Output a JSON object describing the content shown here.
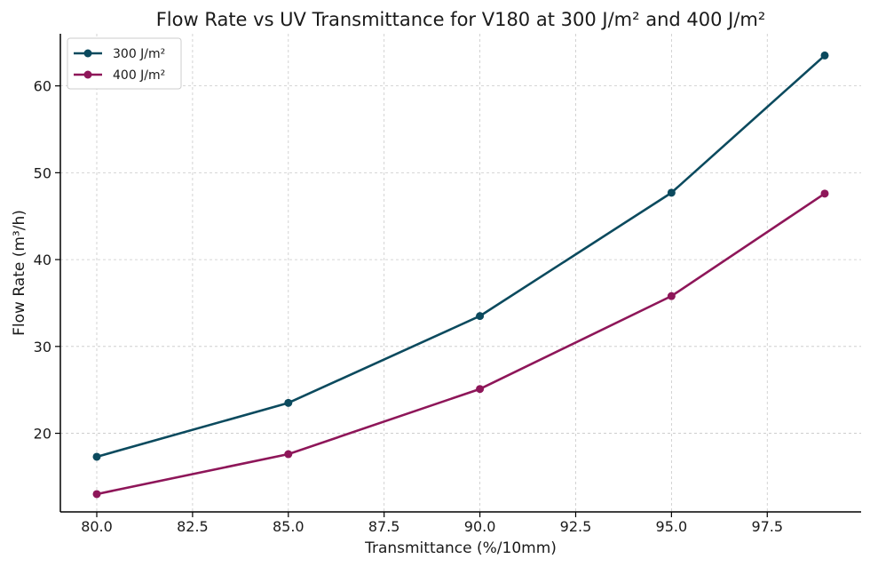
{
  "chart_data": {
    "type": "line",
    "title": "Flow Rate vs UV Transmittance for V180 at 300 J/m² and 400 J/m²",
    "xlabel": "Transmittance (%/10mm)",
    "ylabel": "Flow Rate (m³/h)",
    "x": [
      80,
      85,
      90,
      95,
      99
    ],
    "xlim": [
      79.05,
      99.95
    ],
    "ylim": [
      10.95,
      66.0
    ],
    "xticks": [
      80.0,
      82.5,
      85.0,
      87.5,
      90.0,
      92.5,
      95.0,
      97.5
    ],
    "xtick_labels": [
      "80.0",
      "82.5",
      "85.0",
      "87.5",
      "90.0",
      "92.5",
      "95.0",
      "97.5"
    ],
    "yticks": [
      20,
      30,
      40,
      50,
      60
    ],
    "ytick_labels": [
      "20",
      "30",
      "40",
      "50",
      "60"
    ],
    "grid": true,
    "legend_position": "top-left",
    "series": [
      {
        "name": "300 J/m²",
        "color": "#0b4a5e",
        "values": [
          17.3,
          23.5,
          33.5,
          47.7,
          63.5
        ]
      },
      {
        "name": "400 J/m²",
        "color": "#8e1659",
        "values": [
          13.0,
          17.6,
          25.1,
          35.8,
          47.6
        ]
      }
    ]
  }
}
